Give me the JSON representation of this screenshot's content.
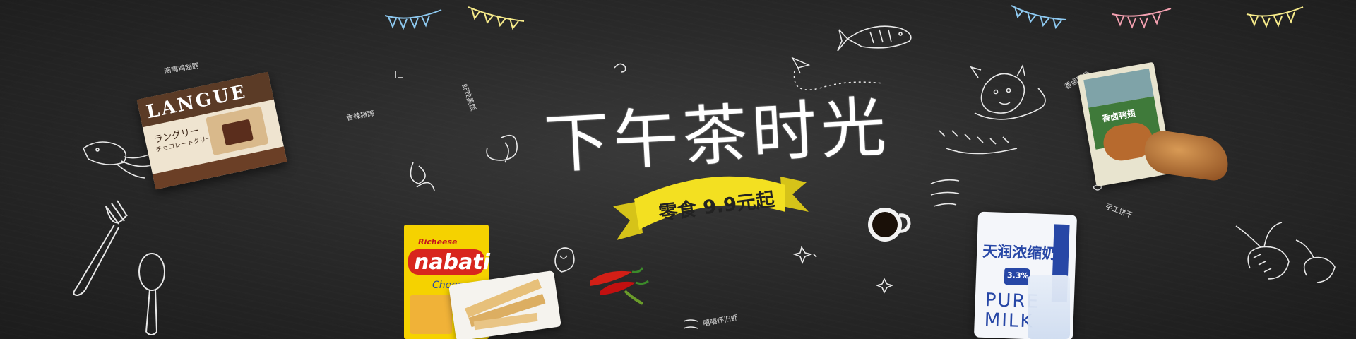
{
  "banner": {
    "title": "下午茶时光",
    "ribbon_text": "零食 9.9元起",
    "colors": {
      "background": "#2a2a2a",
      "chalk": "#ffffff",
      "ribbon": "#f3e021",
      "flag_blue": "#8ec9f0",
      "flag_yellow": "#f7eb8a",
      "flag_pink": "#f3a0b0"
    }
  },
  "chalk_labels": [
    "滴嘴鸡翅膀",
    "香辣猪蹄",
    "虾饺蒸饭",
    "嘻嘻怀旧虾",
    "香卤鸭翅",
    "手工饼干"
  ],
  "products": {
    "langue": {
      "brand": "LANGUE",
      "sub1": "ラングリー",
      "sub2": "チョコレートクリーム"
    },
    "nabati": {
      "maker": "Richeese",
      "brand": "nabati",
      "flavor": "Cheese"
    },
    "milk": {
      "name": "天润浓缩奶",
      "badge": "3.3%",
      "pure": "PURE",
      "milk": "MILK"
    },
    "duck": {
      "label": "香卤鸭翅"
    }
  },
  "icons": [
    "bunting-flags-icon",
    "fish-icon",
    "paper-plane-icon",
    "fork-icon",
    "spoon-icon",
    "squid-icon",
    "shrimp-icon",
    "coffee-cup-icon",
    "chili-pepper-icon",
    "dragon-doodle-icon",
    "sparkle-icon",
    "leaf-doodle-icon"
  ]
}
